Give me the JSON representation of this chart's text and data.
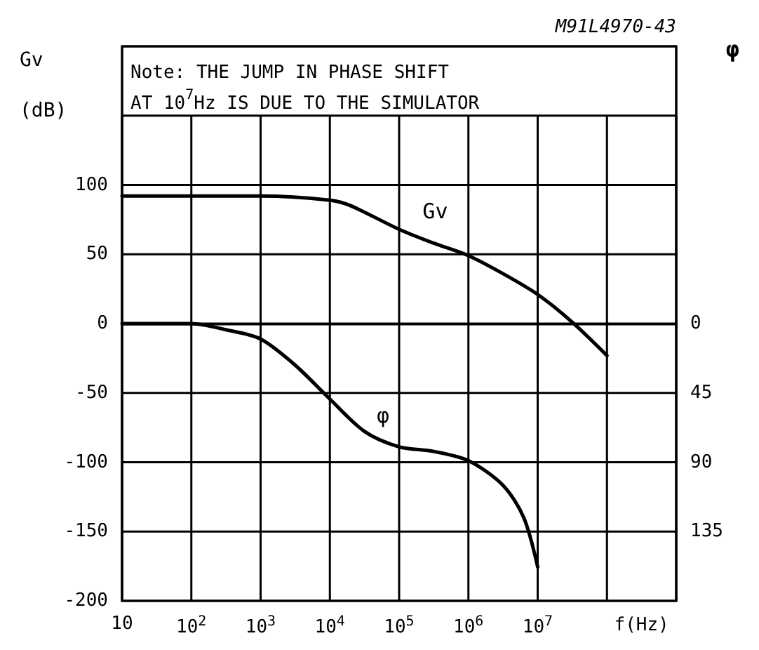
{
  "chart_data": {
    "type": "line",
    "xlabel": "f(Hz)",
    "ylabel": "Gv (dB)",
    "y2label": "φ",
    "log": "x",
    "grid": true,
    "legend": false,
    "marker": "none",
    "line_style": "solid",
    "xlim": [
      10,
      1000000000
    ],
    "xticks": [
      10,
      {
        "value": 100,
        "label": "10$^{2}$"
      },
      {
        "value": 1000,
        "label": "10$^{3}$"
      },
      {
        "value": 10000,
        "label": "10$^{4}$"
      },
      {
        "value": 100000,
        "label": "10$^{5}$"
      },
      {
        "value": 1000000,
        "label": "10$^{6}$"
      },
      {
        "value": 10000000,
        "label": "10$^{7}$"
      },
      {
        "value": 100000000,
        "label": null
      },
      {
        "value": 1000000000,
        "label": null
      }
    ],
    "ylim": [
      -200,
      200
    ],
    "yticks": [
      -200,
      -150,
      -100,
      -50,
      0,
      50,
      100,
      {
        "value": 150,
        "label": null
      },
      {
        "value": 200,
        "label": null
      }
    ],
    "y2lim": [
      180,
      -180
    ],
    "y2ticks": [
      0,
      45,
      90,
      135
    ],
    "series": [
      {
        "name": "Gv",
        "color": "#000000",
        "x": [
          10,
          100,
          1000,
          10000,
          20000,
          100000,
          316000,
          1000000,
          3160000,
          10000000,
          31600000,
          100000000
        ],
        "values": [
          92,
          92,
          92,
          89,
          85,
          68,
          58,
          49,
          36,
          21,
          1,
          -23
        ]
      },
      {
        "name": "φ",
        "color": "#000000",
        "axis": "y2",
        "x": [
          10,
          100,
          316,
          1000,
          3160,
          10000,
          31600,
          100000,
          316000,
          1000000,
          3160000,
          6300000,
          10000000
        ],
        "values": [
          0,
          0,
          4,
          10,
          27,
          49,
          70,
          80,
          83,
          89,
          105,
          126,
          158
        ]
      }
    ],
    "annotations": [
      "Note: THE JUMP IN PHASE SHIFT AT 10$^{7}$Hz IS DUE TO THE SIMULATOR",
      "M91L4970-43"
    ]
  }
}
